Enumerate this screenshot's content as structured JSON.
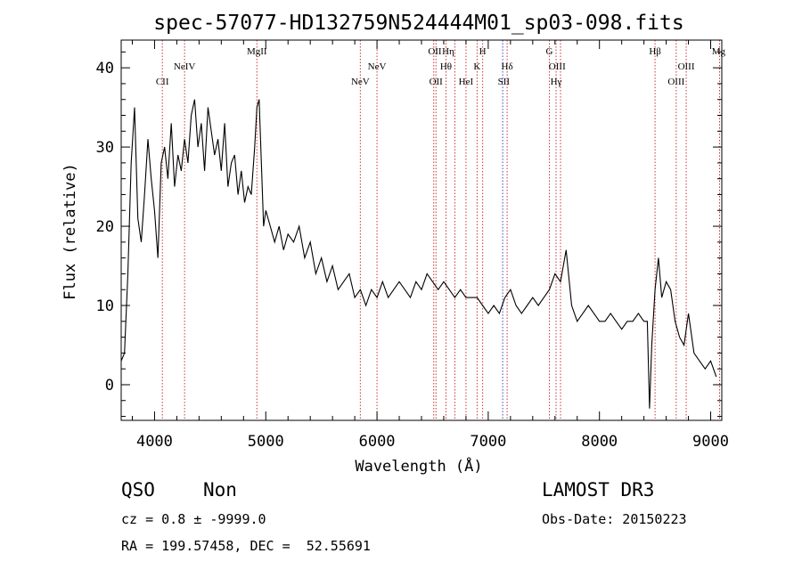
{
  "chart_data": {
    "type": "line",
    "title": "spec-57077-HD132759N524444M01_sp03-098.fits",
    "xlabel": "Wavelength (Å)",
    "ylabel": "Flux (relative)",
    "xlim": [
      3700,
      9100
    ],
    "ylim": [
      -4.5,
      43.5
    ],
    "x_ticks": [
      4000,
      5000,
      6000,
      7000,
      8000,
      9000
    ],
    "y_ticks": [
      0,
      10,
      20,
      30,
      40
    ],
    "series": [
      {
        "name": "spectrum",
        "x": [
          3700,
          3730,
          3760,
          3790,
          3820,
          3850,
          3880,
          3910,
          3940,
          3970,
          4000,
          4030,
          4060,
          4090,
          4120,
          4150,
          4180,
          4210,
          4240,
          4270,
          4300,
          4330,
          4360,
          4390,
          4420,
          4450,
          4480,
          4510,
          4540,
          4570,
          4600,
          4630,
          4660,
          4690,
          4720,
          4750,
          4780,
          4810,
          4840,
          4870,
          4900,
          4920,
          4940,
          4960,
          4980,
          5000,
          5040,
          5080,
          5120,
          5160,
          5200,
          5250,
          5300,
          5350,
          5400,
          5450,
          5500,
          5550,
          5600,
          5650,
          5700,
          5750,
          5800,
          5850,
          5900,
          5950,
          6000,
          6050,
          6100,
          6150,
          6200,
          6250,
          6300,
          6350,
          6400,
          6450,
          6500,
          6550,
          6600,
          6650,
          6700,
          6750,
          6800,
          6850,
          6900,
          6950,
          7000,
          7050,
          7100,
          7150,
          7200,
          7250,
          7300,
          7350,
          7400,
          7450,
          7500,
          7550,
          7600,
          7650,
          7700,
          7750,
          7800,
          7850,
          7900,
          7950,
          8000,
          8050,
          8100,
          8150,
          8200,
          8250,
          8300,
          8350,
          8400,
          8430,
          8450,
          8470,
          8500,
          8530,
          8560,
          8600,
          8640,
          8680,
          8720,
          8760,
          8800,
          8850,
          8900,
          8950,
          9000,
          9050
        ],
        "y": [
          3,
          4,
          14,
          28,
          35,
          21,
          18,
          24,
          31,
          26,
          22,
          16,
          28,
          30,
          26,
          33,
          25,
          29,
          27,
          31,
          28,
          34,
          36,
          30,
          33,
          27,
          35,
          32,
          29,
          31,
          27,
          33,
          25,
          28,
          29,
          24,
          27,
          23,
          25,
          24,
          30,
          35,
          36,
          28,
          20,
          22,
          20,
          18,
          20,
          17,
          19,
          18,
          20,
          16,
          18,
          14,
          16,
          13,
          15,
          12,
          13,
          14,
          11,
          12,
          10,
          12,
          11,
          13,
          11,
          12,
          13,
          12,
          11,
          13,
          12,
          14,
          13,
          12,
          13,
          12,
          11,
          12,
          11,
          11,
          11,
          10,
          9,
          10,
          9,
          11,
          12,
          10,
          9,
          10,
          11,
          10,
          11,
          12,
          14,
          13,
          17,
          10,
          8,
          9,
          10,
          9,
          8,
          8,
          9,
          8,
          7,
          8,
          8,
          9,
          8,
          8,
          -3,
          5,
          12,
          16,
          11,
          13,
          12,
          8,
          6,
          5,
          9,
          4,
          3,
          2,
          3,
          1
        ]
      }
    ],
    "line_labels": [
      {
        "label": "CII",
        "x": 4070,
        "row": 2
      },
      {
        "label": "NeIV",
        "x": 4270,
        "row": 1
      },
      {
        "label": "MgII",
        "x": 4920,
        "row": 0
      },
      {
        "label": "NeV",
        "x": 5850,
        "row": 2
      },
      {
        "label": "NeV",
        "x": 6000,
        "row": 1
      },
      {
        "label": "OII",
        "x": 6520,
        "row": 0
      },
      {
        "label": "OII",
        "x": 6530,
        "row": 2
      },
      {
        "label": "Hη",
        "x": 6640,
        "row": 0
      },
      {
        "label": "Hθ",
        "x": 6620,
        "row": 1
      },
      {
        "label": "HeI",
        "x": 6800,
        "row": 2
      },
      {
        "label": "K",
        "x": 6900,
        "row": 1
      },
      {
        "label": "H",
        "x": 6950,
        "row": 0
      },
      {
        "label": "Hδ",
        "x": 7170,
        "row": 1
      },
      {
        "label": "SII",
        "x": 7140,
        "row": 2
      },
      {
        "label": "G",
        "x": 7550,
        "row": 0
      },
      {
        "label": "OIII",
        "x": 7620,
        "row": 1
      },
      {
        "label": "Hγ",
        "x": 7610,
        "row": 2
      },
      {
        "label": "Hβ",
        "x": 8500,
        "row": 0
      },
      {
        "label": "OIII",
        "x": 8780,
        "row": 1
      },
      {
        "label": "OIII",
        "x": 8690,
        "row": 2
      },
      {
        "label": "Mg",
        "x": 9080,
        "row": 0
      }
    ],
    "vertical_lines": [
      {
        "x": 4070,
        "color": "#cc3333"
      },
      {
        "x": 4270,
        "color": "#cc3333"
      },
      {
        "x": 4920,
        "color": "#cc3333"
      },
      {
        "x": 5850,
        "color": "#cc3333"
      },
      {
        "x": 6000,
        "color": "#cc3333"
      },
      {
        "x": 6510,
        "color": "#cc3333"
      },
      {
        "x": 6530,
        "color": "#cc3333"
      },
      {
        "x": 6620,
        "color": "#cc3333"
      },
      {
        "x": 6700,
        "color": "#cc3333"
      },
      {
        "x": 6800,
        "color": "#cc3333"
      },
      {
        "x": 6900,
        "color": "#cc3333"
      },
      {
        "x": 6950,
        "color": "#cc3333"
      },
      {
        "x": 7130,
        "color": "#3344cc"
      },
      {
        "x": 7170,
        "color": "#cc3333"
      },
      {
        "x": 7550,
        "color": "#cc3333"
      },
      {
        "x": 7610,
        "color": "#cc3333"
      },
      {
        "x": 7650,
        "color": "#cc3333"
      },
      {
        "x": 8500,
        "color": "#cc3333"
      },
      {
        "x": 8690,
        "color": "#cc3333"
      },
      {
        "x": 8780,
        "color": "#cc3333"
      },
      {
        "x": 9080,
        "color": "#cc3333"
      }
    ]
  },
  "info": {
    "class": "QSO",
    "subclass": "Non",
    "cz": "cz = 0.8 ± -9999.0",
    "coords": "RA = 199.57458, DEC =  52.55691",
    "survey": "LAMOST DR3",
    "obs_date": "Obs-Date: 20150223"
  }
}
